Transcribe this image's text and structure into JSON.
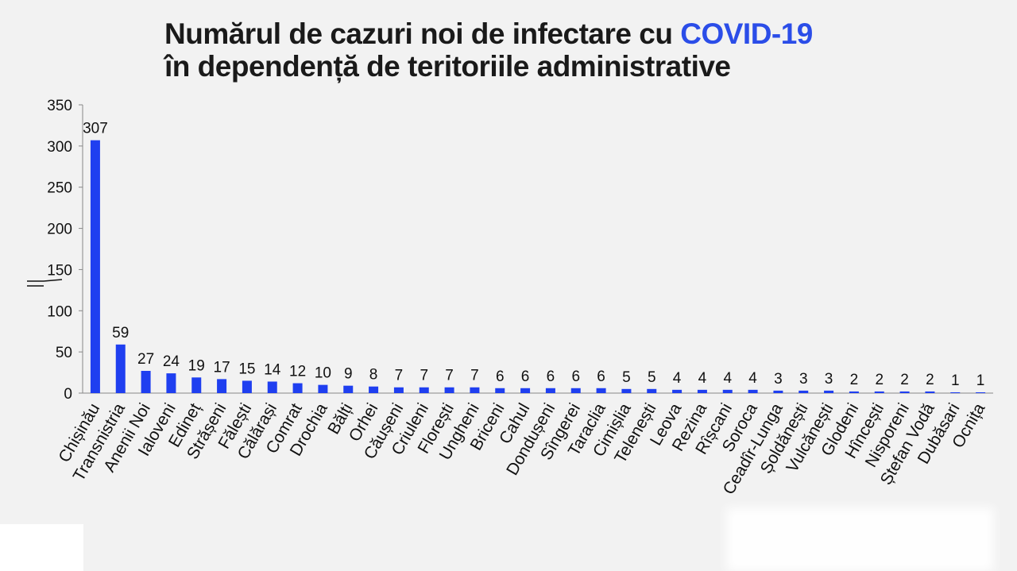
{
  "title": {
    "line1_prefix": "Numărul de cazuri noi de infectare cu ",
    "line1_accent": "COVID-19",
    "line2": "în dependență de teritoriile administrative"
  },
  "colors": {
    "bar": "#1f3ff0",
    "accent": "#2b4de8",
    "axis": "#888888"
  },
  "chart_data": {
    "type": "bar",
    "title": "Numărul de cazuri noi de infectare cu COVID-19 în dependență de teritoriile administrative",
    "xlabel": "",
    "ylabel": "",
    "ylim": [
      0,
      350
    ],
    "yticks": [
      0,
      50,
      100,
      150,
      200,
      250,
      300,
      350
    ],
    "grid": false,
    "categories": [
      "Chișinău",
      "Transnistria",
      "Anenii Noi",
      "Ialoveni",
      "Edineț",
      "Strășeni",
      "Fălești",
      "Călărași",
      "Comrat",
      "Drochia",
      "Bălți",
      "Orhei",
      "Căușeni",
      "Criuleni",
      "Florești",
      "Ungheni",
      "Briceni",
      "Cahul",
      "Dondușeni",
      "Sîngerei",
      "Taraclia",
      "Cimișlia",
      "Telenești",
      "Leova",
      "Rezina",
      "Rîșcani",
      "Soroca",
      "Ceadîr-Lunga",
      "Șoldănești",
      "Vulcănești",
      "Glodeni",
      "Hîncești",
      "Nisporeni",
      "Ștefan Vodă",
      "Dubăsari",
      "Ocnița"
    ],
    "values": [
      307,
      59,
      27,
      24,
      19,
      17,
      15,
      14,
      12,
      10,
      9,
      8,
      7,
      7,
      7,
      7,
      6,
      6,
      6,
      6,
      6,
      5,
      5,
      4,
      4,
      4,
      4,
      3,
      3,
      3,
      2,
      2,
      2,
      2,
      1,
      1
    ]
  }
}
